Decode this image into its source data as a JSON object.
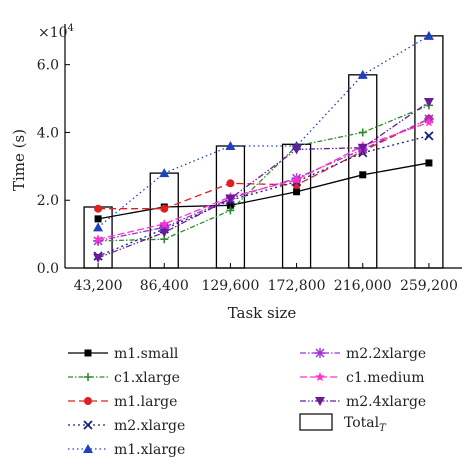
{
  "chart_data": {
    "type": "line",
    "title": "",
    "xlabel": "Task size",
    "ylabel": "Time (s)",
    "y_multiplier": "×10",
    "y_multiplier_exp": "4",
    "categories": [
      "43,200",
      "86,400",
      "129,600",
      "172,800",
      "216,000",
      "259,200"
    ],
    "yticks": [
      0,
      2,
      4,
      6
    ],
    "ytick_labels": [
      "0.0",
      "2.0",
      "4.0",
      "6.0"
    ],
    "ylim": [
      0,
      7.2
    ],
    "grid": false,
    "legend_position": "bottom",
    "series": [
      {
        "name": "m1.small",
        "values": [
          1.45,
          1.8,
          1.85,
          2.25,
          2.75,
          3.1
        ],
        "color": "#000000",
        "dash": "",
        "marker": "square"
      },
      {
        "name": "c1.xlarge",
        "values": [
          0.8,
          0.85,
          1.7,
          3.6,
          4.0,
          4.8
        ],
        "color": "#2e8b2e",
        "dash": "5,2,1.5,2",
        "marker": "plus"
      },
      {
        "name": "m1.large",
        "values": [
          1.75,
          1.75,
          2.5,
          2.45,
          3.45,
          4.4
        ],
        "color": "#e02020",
        "dash": "7,4",
        "marker": "circle"
      },
      {
        "name": "m2.xlarge",
        "values": [
          0.35,
          1.15,
          2.0,
          2.55,
          3.4,
          3.9
        ],
        "color": "#1a237e",
        "dash": "2,3",
        "marker": "x"
      },
      {
        "name": "m1.xlarge",
        "values": [
          1.2,
          2.8,
          3.6,
          3.6,
          5.7,
          6.85
        ],
        "color": "#2040c0",
        "dash": "1.5,3",
        "marker": "triangle-up"
      },
      {
        "name": "m2.2xlarge",
        "values": [
          0.8,
          1.2,
          2.05,
          2.65,
          3.5,
          4.4
        ],
        "color": "#9b30d9",
        "dash": "6,2,1.5,2",
        "marker": "asterisk"
      },
      {
        "name": "c1.medium",
        "values": [
          0.85,
          1.3,
          2.1,
          2.6,
          3.6,
          4.3
        ],
        "color": "#ff33cc",
        "dash": "7,3",
        "marker": "star"
      },
      {
        "name": "m2.4xlarge",
        "values": [
          0.3,
          1.05,
          2.05,
          3.5,
          3.55,
          4.9
        ],
        "color": "#6a1b9a",
        "dash": "6,2,1.5,2,1.5,2",
        "marker": "triangle-down"
      }
    ],
    "bars": {
      "name": "Total",
      "name_sub": "T",
      "values": [
        1.8,
        2.8,
        3.6,
        3.65,
        5.7,
        6.85
      ]
    }
  }
}
